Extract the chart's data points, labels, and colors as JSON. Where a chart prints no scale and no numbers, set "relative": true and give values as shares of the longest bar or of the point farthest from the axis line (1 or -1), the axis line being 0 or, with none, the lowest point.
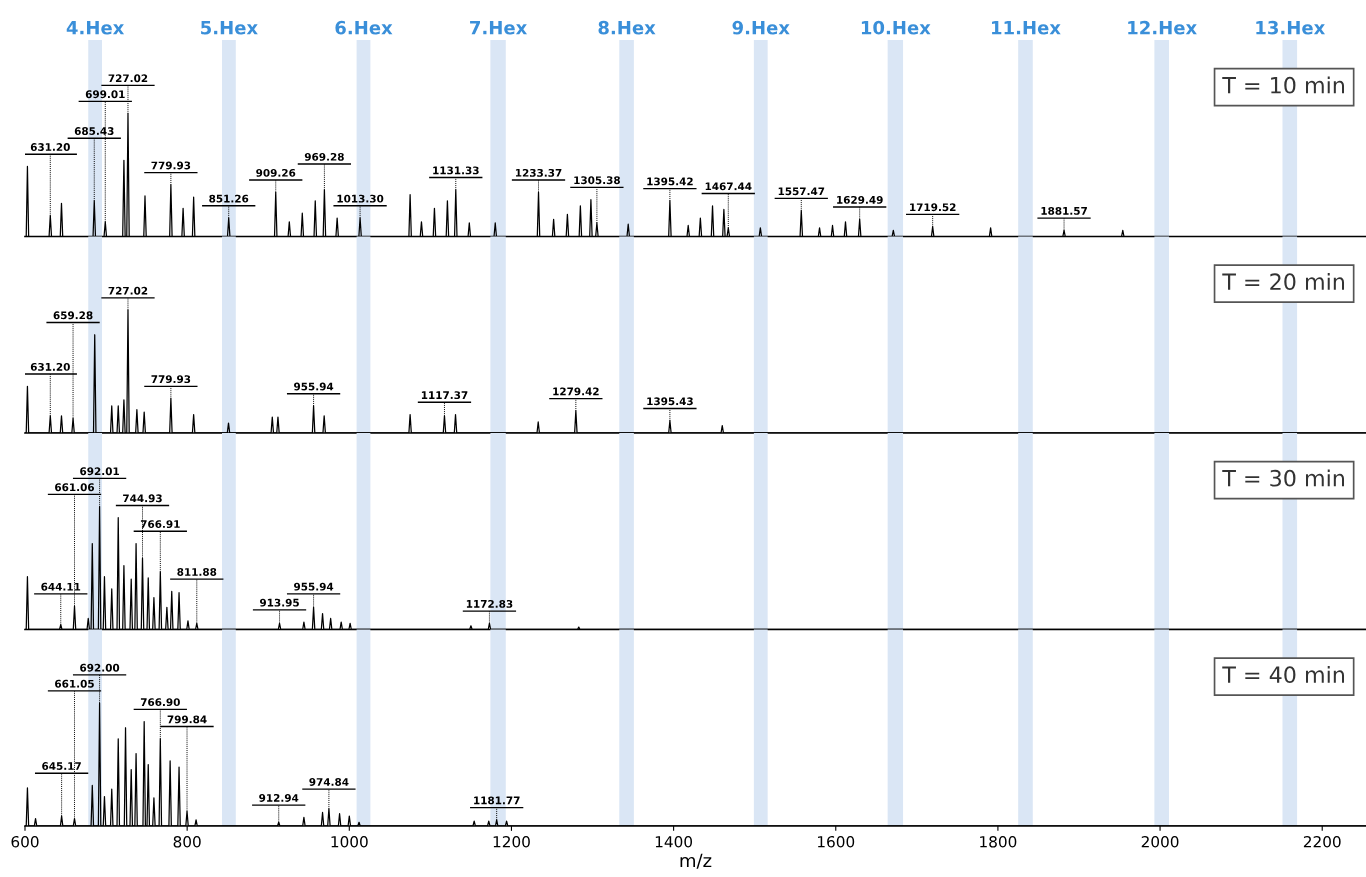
{
  "chart_data": [
    {
      "type": "line",
      "relative": true,
      "xlim": [
        600,
        2254
      ],
      "tick_labels": false,
      "series": [
        {
          "color": "#000000",
          "x": [
            600,
            601.5,
            603,
            604.5,
            629.7,
            631.2,
            632.7,
            643.5,
            645,
            646.5,
            683.93,
            685.43,
            686.93,
            697.51,
            699.01,
            700.51,
            720.5,
            722,
            723.5,
            725.52,
            727.02,
            728.52,
            746.5,
            748,
            749.5,
            778.43,
            779.93,
            781.43,
            793.5,
            795,
            796.5,
            806.5,
            808,
            809.5,
            849.76,
            851.26,
            852.76,
            907.76,
            909.26,
            910.76,
            924.5,
            926,
            927.5,
            940.5,
            942,
            943.5,
            956.5,
            958,
            959.5,
            967.78,
            969.28,
            970.78,
            983.5,
            985,
            986.5,
            1011.8,
            1013.3,
            1014.8,
            1073.5,
            1075,
            1076.5,
            1087.5,
            1089,
            1090.5,
            1103.5,
            1105,
            1106.5,
            1119.5,
            1121,
            1122.5,
            1129.83,
            1131.33,
            1132.83,
            1146.5,
            1148,
            1149.5,
            1178.5,
            1180,
            1181.5,
            1231.87,
            1233.37,
            1234.87,
            1250.5,
            1252,
            1253.5,
            1267.5,
            1269,
            1270.5,
            1283.5,
            1285,
            1286.5,
            1296.5,
            1298,
            1299.5,
            1303.88,
            1305.38,
            1306.88,
            1342.5,
            1344,
            1345.5,
            1393.92,
            1395.42,
            1396.92,
            1416.5,
            1418,
            1419.5,
            1431.5,
            1433,
            1434.5,
            1446.5,
            1448,
            1449.5,
            1460.5,
            1462,
            1463.5,
            1465.94,
            1467.44,
            1468.94,
            1505.5,
            1507,
            1508.5,
            1555.97,
            1557.47,
            1558.97,
            1578.5,
            1580,
            1581.5,
            1594.5,
            1596,
            1597.5,
            1610.5,
            1612,
            1613.5,
            1627.99,
            1629.49,
            1630.99,
            1669.5,
            1671,
            1672.5,
            1718.02,
            1719.52,
            1721.02,
            1789.5,
            1791,
            1792.5,
            1880.07,
            1881.57,
            1883.07,
            1952.5,
            1954,
            1955.5,
            2254
          ],
          "values": [
            0,
            0,
            0.57,
            0,
            0,
            0.17,
            0,
            0,
            0.27,
            0,
            0,
            0.29,
            0,
            0,
            0.12,
            0,
            0,
            0.62,
            0,
            0,
            1,
            0,
            0,
            0.33,
            0,
            0,
            0.42,
            0,
            0,
            0.23,
            0,
            0,
            0.32,
            0,
            0,
            0.15,
            0,
            0,
            0.36,
            0,
            0,
            0.12,
            0,
            0,
            0.19,
            0,
            0,
            0.29,
            0,
            0,
            0.38,
            0,
            0,
            0.15,
            0,
            0,
            0.15,
            0,
            0,
            0.34,
            0,
            0,
            0.12,
            0,
            0,
            0.23,
            0,
            0,
            0.29,
            0,
            0,
            0.38,
            0,
            0,
            0.11,
            0,
            0,
            0.11,
            0,
            0,
            0.36,
            0,
            0,
            0.14,
            0,
            0,
            0.18,
            0,
            0,
            0.25,
            0,
            0,
            0.3,
            0,
            0,
            0.11,
            0,
            0,
            0.1,
            0,
            0,
            0.29,
            0,
            0,
            0.09,
            0,
            0,
            0.15,
            0,
            0,
            0.25,
            0,
            0,
            0.22,
            0,
            0,
            0.07,
            0,
            0,
            0.07,
            0,
            0,
            0.21,
            0,
            0,
            0.07,
            0,
            0,
            0.09,
            0,
            0,
            0.12,
            0,
            0,
            0.14,
            0,
            0,
            0.05,
            0,
            0,
            0.08,
            0,
            0,
            0.07,
            0,
            0,
            0.05,
            0,
            0,
            0.05,
            0,
            0
          ]
        }
      ],
      "bands": [
        {
          "axis": "x",
          "from": 678,
          "to": 695,
          "label": "4.Hex",
          "color": "#dae6f5"
        },
        {
          "axis": "x",
          "from": 843,
          "to": 860,
          "label": "5.Hex",
          "color": "#dae6f5"
        },
        {
          "axis": "x",
          "from": 1009,
          "to": 1026,
          "label": "6.Hex",
          "color": "#dae6f5"
        },
        {
          "axis": "x",
          "from": 1174,
          "to": 1193,
          "label": "7.Hex",
          "color": "#dae6f5"
        },
        {
          "axis": "x",
          "from": 1333,
          "to": 1351,
          "label": "8.Hex",
          "color": "#dae6f5"
        },
        {
          "axis": "x",
          "from": 1499,
          "to": 1516,
          "label": "9.Hex",
          "color": "#dae6f5"
        },
        {
          "axis": "x",
          "from": 1664,
          "to": 1683,
          "label": "10.Hex",
          "color": "#dae6f5"
        },
        {
          "axis": "x",
          "from": 1825,
          "to": 1843,
          "label": "11.Hex",
          "color": "#dae6f5"
        },
        {
          "axis": "x",
          "from": 1993,
          "to": 2011,
          "label": "12.Hex",
          "color": "#dae6f5"
        },
        {
          "axis": "x",
          "from": 2151,
          "to": 2169,
          "label": "13.Hex",
          "color": "#dae6f5"
        }
      ],
      "annotations": [
        "T = 10 min",
        {
          "text": "631.20",
          "x": 631.2,
          "y": 0.17
        },
        {
          "text": "685.43",
          "x": 685.43,
          "y": 0.29
        },
        {
          "text": "699.01",
          "x": 699.01,
          "y": 0.12
        },
        {
          "text": "727.02",
          "x": 727.02,
          "y": 1
        },
        {
          "text": "779.93",
          "x": 779.93,
          "y": 0.42
        },
        {
          "text": "851.26",
          "x": 851.26,
          "y": 0.15
        },
        {
          "text": "909.26",
          "x": 909.26,
          "y": 0.36
        },
        {
          "text": "969.28",
          "x": 969.28,
          "y": 0.38
        },
        {
          "text": "1013.30",
          "x": 1013.3,
          "y": 0.15
        },
        {
          "text": "1131.33",
          "x": 1131.33,
          "y": 0.38
        },
        {
          "text": "1233.37",
          "x": 1233.37,
          "y": 0.36
        },
        {
          "text": "1305.38",
          "x": 1305.38,
          "y": 0.11
        },
        {
          "text": "1395.42",
          "x": 1395.42,
          "y": 0.29
        },
        {
          "text": "1467.44",
          "x": 1467.44,
          "y": 0.07
        },
        {
          "text": "1557.47",
          "x": 1557.47,
          "y": 0.21
        },
        {
          "text": "1629.49",
          "x": 1629.49,
          "y": 0.14
        },
        {
          "text": "1719.52",
          "x": 1719.52,
          "y": 0.08
        },
        {
          "text": "1881.57",
          "x": 1881.57,
          "y": 0.05
        }
      ]
    },
    {
      "type": "line",
      "relative": true,
      "xlim": [
        600,
        2254
      ],
      "tick_labels": false,
      "series": [
        {
          "color": "#000000",
          "x": [
            600,
            601.5,
            603,
            604.5,
            629.7,
            631.2,
            632.7,
            643.5,
            645,
            646.5,
            657.78,
            659.28,
            660.78,
            684.5,
            686,
            687.5,
            705.5,
            707,
            708.5,
            713.5,
            715,
            716.5,
            720.5,
            722,
            723.5,
            725.52,
            727.02,
            728.52,
            736.5,
            738,
            739.5,
            745.5,
            747,
            748.5,
            778.43,
            779.93,
            781.43,
            806.5,
            808,
            809.5,
            849.5,
            851,
            852.5,
            903.5,
            905,
            906.5,
            910.5,
            912,
            913.5,
            954.44,
            955.94,
            957.44,
            967.5,
            969,
            970.5,
            1073.5,
            1075,
            1076.5,
            1115.87,
            1117.37,
            1118.87,
            1129.5,
            1131,
            1132.5,
            1231.5,
            1233,
            1234.5,
            1277.92,
            1279.42,
            1280.92,
            1393.93,
            1395.43,
            1396.93,
            1458.5,
            1460,
            1461.5,
            2254
          ],
          "values": [
            0,
            0,
            0.38,
            0,
            0,
            0.14,
            0,
            0,
            0.14,
            0,
            0,
            0.12,
            0,
            0,
            0.8,
            0,
            0,
            0.22,
            0,
            0,
            0.22,
            0,
            0,
            0.27,
            0,
            0,
            1,
            0,
            0,
            0.19,
            0,
            0,
            0.17,
            0,
            0,
            0.28,
            0,
            0,
            0.15,
            0,
            0,
            0.08,
            0,
            0,
            0.13,
            0,
            0,
            0.13,
            0,
            0,
            0.22,
            0,
            0,
            0.14,
            0,
            0,
            0.15,
            0,
            0,
            0.14,
            0,
            0,
            0.15,
            0,
            0,
            0.09,
            0,
            0,
            0.18,
            0,
            0,
            0.1,
            0,
            0,
            0.06,
            0,
            0
          ]
        }
      ],
      "bands": [
        {
          "axis": "x",
          "from": 678,
          "to": 695,
          "color": "#dae6f5"
        },
        {
          "axis": "x",
          "from": 843,
          "to": 860,
          "color": "#dae6f5"
        },
        {
          "axis": "x",
          "from": 1009,
          "to": 1026,
          "color": "#dae6f5"
        },
        {
          "axis": "x",
          "from": 1174,
          "to": 1193,
          "color": "#dae6f5"
        },
        {
          "axis": "x",
          "from": 1333,
          "to": 1351,
          "color": "#dae6f5"
        },
        {
          "axis": "x",
          "from": 1499,
          "to": 1516,
          "color": "#dae6f5"
        },
        {
          "axis": "x",
          "from": 1664,
          "to": 1683,
          "color": "#dae6f5"
        },
        {
          "axis": "x",
          "from": 1825,
          "to": 1843,
          "color": "#dae6f5"
        },
        {
          "axis": "x",
          "from": 1993,
          "to": 2011,
          "color": "#dae6f5"
        },
        {
          "axis": "x",
          "from": 2151,
          "to": 2169,
          "color": "#dae6f5"
        }
      ],
      "annotations": [
        "T = 20 min",
        {
          "text": "631.20",
          "x": 631.2,
          "y": 0.14
        },
        {
          "text": "659.28",
          "x": 659.28,
          "y": 0.12
        },
        {
          "text": "727.02",
          "x": 727.02,
          "y": 1
        },
        {
          "text": "779.93",
          "x": 779.93,
          "y": 0.28
        },
        {
          "text": "955.94",
          "x": 955.94,
          "y": 0.22
        },
        {
          "text": "1117.37",
          "x": 1117.37,
          "y": 0.14
        },
        {
          "text": "1279.42",
          "x": 1279.42,
          "y": 0.18
        },
        {
          "text": "1395.43",
          "x": 1395.43,
          "y": 0.1
        }
      ]
    },
    {
      "type": "line",
      "relative": true,
      "xlim": [
        600,
        2254
      ],
      "tick_labels": false,
      "series": [
        {
          "color": "#000000",
          "x": [
            600,
            601.5,
            603,
            604.5,
            642.61,
            644.11,
            645.61,
            659.56,
            661.06,
            662.56,
            676.5,
            678,
            679.5,
            681.5,
            683,
            684.5,
            690.51,
            692.01,
            693.51,
            696.5,
            698,
            699.5,
            705.5,
            707,
            708.5,
            713.5,
            715,
            716.5,
            720.5,
            722,
            723.5,
            729.5,
            731,
            732.5,
            735.5,
            737,
            738.5,
            743.43,
            744.93,
            746.43,
            750.5,
            752,
            753.5,
            757.5,
            759,
            760.5,
            765.41,
            766.91,
            768.41,
            773.5,
            775,
            776.5,
            779.5,
            781,
            782.5,
            788.5,
            790,
            791.5,
            799.5,
            801,
            802.5,
            810.38,
            811.88,
            813.38,
            912.45,
            913.95,
            915.45,
            942.5,
            944,
            945.5,
            954.44,
            955.94,
            957.44,
            965.5,
            967,
            968.5,
            975.5,
            977,
            978.5,
            988.5,
            990,
            991.5,
            999.5,
            1001,
            1002.5,
            1148.5,
            1150,
            1151.5,
            1171.33,
            1172.83,
            1174.33,
            1281.5,
            1283,
            1284.5,
            2254
          ],
          "values": [
            0,
            0,
            0.43,
            0,
            0,
            0.04,
            0,
            0,
            0.19,
            0,
            0,
            0.09,
            0,
            0,
            0.7,
            0,
            0,
            1,
            0,
            0,
            0.43,
            0,
            0,
            0.33,
            0,
            0,
            0.91,
            0,
            0,
            0.52,
            0,
            0,
            0.41,
            0,
            0,
            0.7,
            0,
            0,
            0.58,
            0,
            0,
            0.42,
            0,
            0,
            0.26,
            0,
            0,
            0.47,
            0,
            0,
            0.18,
            0,
            0,
            0.31,
            0,
            0,
            0.3,
            0,
            0,
            0.07,
            0,
            0,
            0.05,
            0,
            0,
            0.05,
            0,
            0,
            0.06,
            0,
            0,
            0.18,
            0,
            0,
            0.13,
            0,
            0,
            0.09,
            0,
            0,
            0.06,
            0,
            0,
            0.05,
            0,
            0,
            0.03,
            0,
            0,
            0.05,
            0,
            0,
            0.02,
            0,
            0
          ]
        }
      ],
      "bands": [
        {
          "axis": "x",
          "from": 678,
          "to": 695,
          "color": "#dae6f5"
        },
        {
          "axis": "x",
          "from": 843,
          "to": 860,
          "color": "#dae6f5"
        },
        {
          "axis": "x",
          "from": 1009,
          "to": 1026,
          "color": "#dae6f5"
        },
        {
          "axis": "x",
          "from": 1174,
          "to": 1193,
          "color": "#dae6f5"
        },
        {
          "axis": "x",
          "from": 1333,
          "to": 1351,
          "color": "#dae6f5"
        },
        {
          "axis": "x",
          "from": 1499,
          "to": 1516,
          "color": "#dae6f5"
        },
        {
          "axis": "x",
          "from": 1664,
          "to": 1683,
          "color": "#dae6f5"
        },
        {
          "axis": "x",
          "from": 1825,
          "to": 1843,
          "color": "#dae6f5"
        },
        {
          "axis": "x",
          "from": 1993,
          "to": 2011,
          "color": "#dae6f5"
        },
        {
          "axis": "x",
          "from": 2151,
          "to": 2169,
          "color": "#dae6f5"
        }
      ],
      "annotations": [
        "T = 30 min",
        {
          "text": "644.11",
          "x": 644.11,
          "y": 0.04
        },
        {
          "text": "661.06",
          "x": 661.06,
          "y": 0.19
        },
        {
          "text": "692.01",
          "x": 692.01,
          "y": 1
        },
        {
          "text": "744.93",
          "x": 744.93,
          "y": 0.58
        },
        {
          "text": "766.91",
          "x": 766.91,
          "y": 0.47
        },
        {
          "text": "811.88",
          "x": 811.88,
          "y": 0.05
        },
        {
          "text": "913.95",
          "x": 913.95,
          "y": 0.05
        },
        {
          "text": "955.94",
          "x": 955.94,
          "y": 0.18
        },
        {
          "text": "1172.83",
          "x": 1172.83,
          "y": 0.05
        }
      ]
    },
    {
      "type": "line",
      "relative": true,
      "xlim": [
        600,
        2254
      ],
      "xticks": [
        600,
        800,
        1000,
        1200,
        1400,
        1600,
        1800,
        2000,
        2200
      ],
      "tick_labels": "x",
      "xlabel": "m/z",
      "series": [
        {
          "color": "#000000",
          "x": [
            600,
            601.5,
            603,
            604.5,
            611.5,
            613,
            614.5,
            643.67,
            645.17,
            646.67,
            659.55,
            661.05,
            662.55,
            681.5,
            683,
            684.5,
            690.5,
            692,
            693.5,
            696.5,
            698,
            699.5,
            705.5,
            707,
            708.5,
            713.5,
            715,
            716.5,
            722.5,
            724,
            725.5,
            729.5,
            731,
            732.5,
            735.5,
            737,
            738.5,
            745.5,
            747,
            748.5,
            750.5,
            752,
            753.5,
            757.5,
            759,
            760.5,
            765.4,
            766.9,
            768.4,
            777.5,
            779,
            780.5,
            788.5,
            790,
            791.5,
            798.34,
            799.84,
            801.34,
            809.5,
            811,
            812.5,
            911.44,
            912.94,
            914.44,
            942.5,
            944,
            945.5,
            965.5,
            967,
            968.5,
            973.34,
            974.84,
            976.34,
            986.5,
            988,
            989.5,
            998.5,
            1000,
            1001.5,
            1010.5,
            1012,
            1013.5,
            1152.5,
            1154,
            1155.5,
            1170.5,
            1172,
            1173.5,
            1180.27,
            1181.77,
            1183.27,
            1192.5,
            1194,
            1195.5,
            2254
          ],
          "values": [
            0,
            0,
            0.31,
            0,
            0,
            0.06,
            0,
            0,
            0.08,
            0,
            0,
            0.06,
            0,
            0,
            0.33,
            0,
            0,
            1,
            0,
            0,
            0.24,
            0,
            0,
            0.3,
            0,
            0,
            0.71,
            0,
            0,
            0.8,
            0,
            0,
            0.46,
            0,
            0,
            0.59,
            0,
            0,
            0.85,
            0,
            0,
            0.5,
            0,
            0,
            0.23,
            0,
            0,
            0.71,
            0,
            0,
            0.53,
            0,
            0,
            0.48,
            0,
            0,
            0.12,
            0,
            0,
            0.05,
            0,
            0,
            0.03,
            0,
            0,
            0.07,
            0,
            0,
            0.11,
            0,
            0,
            0.14,
            0,
            0,
            0.1,
            0,
            0,
            0.08,
            0,
            0,
            0.03,
            0,
            0,
            0.04,
            0,
            0,
            0.04,
            0,
            0,
            0.05,
            0,
            0,
            0.04,
            0,
            0
          ]
        }
      ],
      "bands": [
        {
          "axis": "x",
          "from": 678,
          "to": 695,
          "color": "#dae6f5"
        },
        {
          "axis": "x",
          "from": 843,
          "to": 860,
          "color": "#dae6f5"
        },
        {
          "axis": "x",
          "from": 1009,
          "to": 1026,
          "color": "#dae6f5"
        },
        {
          "axis": "x",
          "from": 1174,
          "to": 1193,
          "color": "#dae6f5"
        },
        {
          "axis": "x",
          "from": 1333,
          "to": 1351,
          "color": "#dae6f5"
        },
        {
          "axis": "x",
          "from": 1499,
          "to": 1516,
          "color": "#dae6f5"
        },
        {
          "axis": "x",
          "from": 1664,
          "to": 1683,
          "color": "#dae6f5"
        },
        {
          "axis": "x",
          "from": 1825,
          "to": 1843,
          "color": "#dae6f5"
        },
        {
          "axis": "x",
          "from": 1993,
          "to": 2011,
          "color": "#dae6f5"
        },
        {
          "axis": "x",
          "from": 2151,
          "to": 2169,
          "color": "#dae6f5"
        }
      ],
      "annotations": [
        "T = 40 min",
        {
          "text": "645.17",
          "x": 645.17,
          "y": 0.08
        },
        {
          "text": "661.05",
          "x": 661.05,
          "y": 0.06
        },
        {
          "text": "692.00",
          "x": 692,
          "y": 1
        },
        {
          "text": "766.90",
          "x": 766.9,
          "y": 0.71
        },
        {
          "text": "799.84",
          "x": 799.84,
          "y": 0.12
        },
        {
          "text": "912.94",
          "x": 912.94,
          "y": 0.03
        },
        {
          "text": "974.84",
          "x": 974.84,
          "y": 0.14
        },
        {
          "text": "1181.77",
          "x": 1181.77,
          "y": 0.05
        }
      ]
    }
  ]
}
